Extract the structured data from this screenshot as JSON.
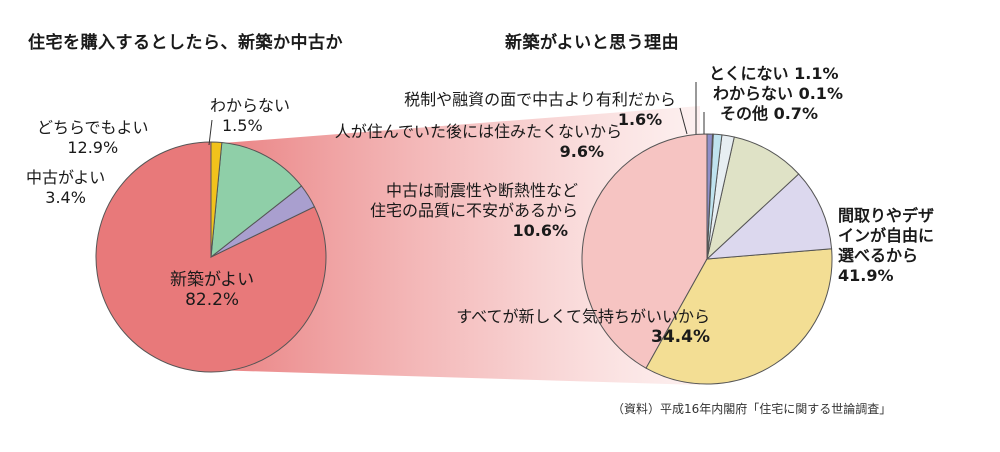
{
  "chart_data": [
    {
      "type": "pie",
      "title": "住宅を購入するとしたら、新築か中古か",
      "slices": [
        {
          "label": "新築がよい",
          "value": 82.2,
          "value_label": "82.2%",
          "color": "#e8797a"
        },
        {
          "label": "中古がよい",
          "value": 3.4,
          "value_label": "3.4%",
          "color": "#a99fcf"
        },
        {
          "label": "どちらでもよい",
          "value": 12.9,
          "value_label": "12.9%",
          "color": "#8fcfa8"
        },
        {
          "label": "わからない",
          "value": 1.5,
          "value_label": "1.5%",
          "color": "#f2c21b"
        }
      ]
    },
    {
      "type": "pie",
      "title": "新築がよいと思う理由",
      "slices": [
        {
          "label": "間取りやデザインが自由に選べるから",
          "value": 41.9,
          "value_label": "41.9%",
          "color": "#f6c4c2"
        },
        {
          "label": "すべてが新しくて気持ちがいいから",
          "value": 34.4,
          "value_label": "34.4%",
          "color": "#f3de94"
        },
        {
          "label": "中古は耐震性や断熱性など住宅の品質に不安があるから",
          "value": 10.6,
          "value_label": "10.6%",
          "color": "#dcd8ee"
        },
        {
          "label": "人が住んでいた後には住みたくないから",
          "value": 9.6,
          "value_label": "9.6%",
          "color": "#dfe2c6"
        },
        {
          "label": "税制や融資の面で中古より有利だから",
          "value": 1.6,
          "value_label": "1.6%",
          "color": "#e7eef2"
        },
        {
          "label": "とくにない",
          "value": 1.1,
          "value_label": "1.1%",
          "color": "#bfe3ef"
        },
        {
          "label": "わからない",
          "value": 0.1,
          "value_label": "0.1%",
          "color": "#d6ecf4"
        },
        {
          "label": "その他",
          "value": 0.7,
          "value_label": "0.7%",
          "color": "#8f8fc9"
        }
      ]
    }
  ],
  "labels": {
    "left_new": "新築がよい",
    "left_new_pct": "82.2%",
    "left_used": "中古がよい",
    "left_used_pct": "3.4%",
    "left_either": "どちらでもよい",
    "left_either_pct": "12.9%",
    "left_unknown": "わからない",
    "left_unknown_pct": "1.5%",
    "r_design_1": "間取りやデザ",
    "r_design_2": "インが自由に",
    "r_design_3": "選べるから",
    "r_design_pct": "41.9%",
    "r_fresh": "すべてが新しくて気持ちがいいから",
    "r_fresh_pct": "34.4%",
    "r_quality_1": "中古は耐震性や断熱性など",
    "r_quality_2": "住宅の品質に不安があるから",
    "r_quality_pct": "10.6%",
    "r_lived": "人が住んでいた後には住みたくないから",
    "r_lived_pct": "9.6%",
    "r_tax": "税制や融資の面で中古より有利だから",
    "r_tax_pct": "1.6%",
    "r_none": "とくにない",
    "r_none_pct": "1.1%",
    "r_unknown": "わからない",
    "r_unknown_pct": "0.1%",
    "r_other": "その他",
    "r_other_pct": "0.7%"
  },
  "source": "（資料）平成16年内閣府「住宅に関する世論調査」"
}
